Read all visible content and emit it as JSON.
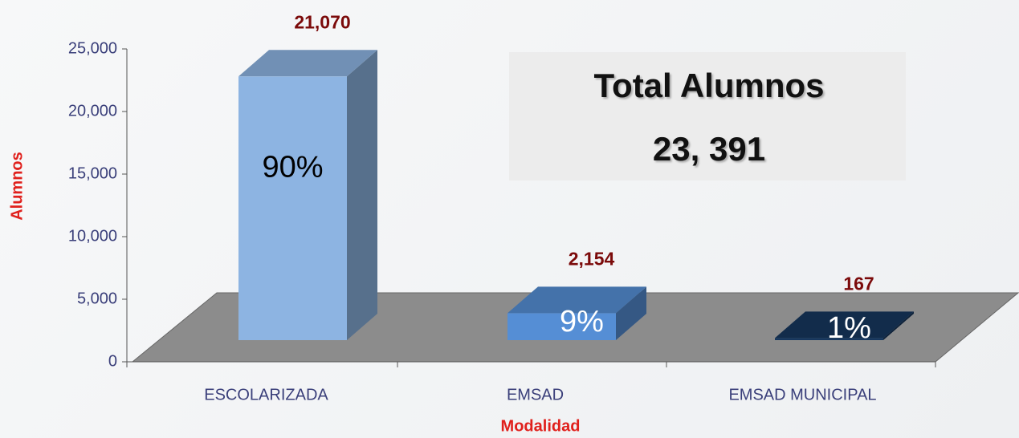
{
  "chart_data": {
    "type": "bar3d",
    "categories": [
      "ESCOLARIZADA",
      "EMSAD",
      "EMSAD MUNICIPAL"
    ],
    "values": [
      21070,
      2154,
      167
    ],
    "value_labels": [
      "21,070",
      "2,154",
      "167"
    ],
    "percent_labels": [
      "90%",
      "9%",
      "1%"
    ],
    "colors": [
      "#8db4e2",
      "#558ed5",
      "#17375e"
    ],
    "ylim": [
      0,
      25000
    ],
    "yticks": [
      0,
      {
        "value": 5000,
        "label": "5,000"
      },
      {
        "value": 10000,
        "label": "10,000"
      },
      {
        "value": 15000,
        "label": "15,000"
      },
      {
        "value": 20000,
        "label": "20,000"
      },
      {
        "value": 25000,
        "label": "25,000"
      }
    ],
    "xlabel": "Modalidad",
    "ylabel": "Alumnos",
    "annotation": {
      "title": "Total Alumnos",
      "total": "23, 391"
    }
  }
}
